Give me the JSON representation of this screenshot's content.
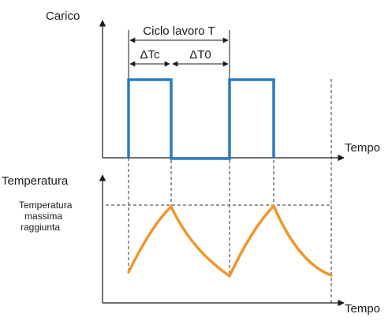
{
  "colors": {
    "load": "#2b7ac2",
    "temperature": "#f2962a",
    "axis": "#1a1a1a"
  },
  "top_chart": {
    "ylabel": "Carico",
    "xlabel": "Tempo",
    "cycle_label": "Ciclo lavoro T",
    "on_label": "ΔTc",
    "off_label": "ΔT0"
  },
  "bottom_chart": {
    "ylabel": "Temperatura",
    "xlabel": "Tempo",
    "max_label_lines": [
      "Temperatura",
      "massima",
      "raggiunta"
    ]
  }
}
